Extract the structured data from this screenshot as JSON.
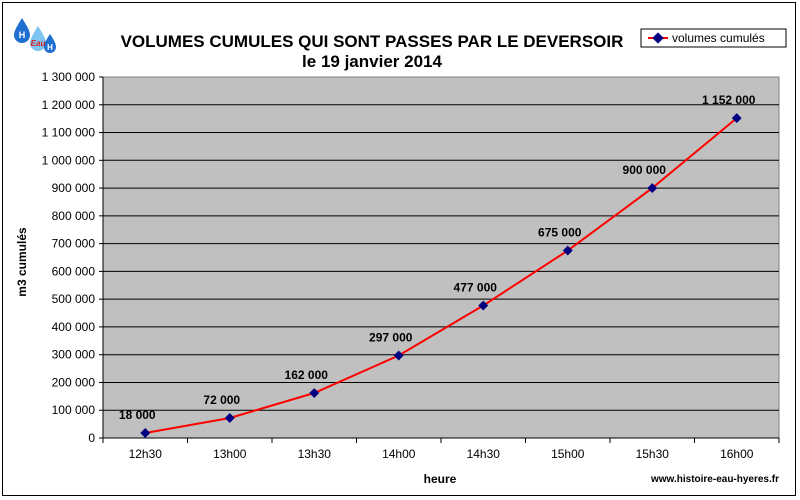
{
  "logo": {
    "letters": [
      "H",
      "Eau",
      "H"
    ],
    "colors": {
      "blue": "#1f6fd0",
      "light": "#7fc4f0",
      "red": "#d82020"
    }
  },
  "credit": "www.histoire-eau-hyeres.fr",
  "chart_data": {
    "type": "line",
    "title": "VOLUMES CUMULES QUI SONT PASSES PAR LE DEVERSOIR",
    "subtitle": "le 19 janvier 2014",
    "xlabel": "heure",
    "ylabel": "m3 cumulés",
    "categories": [
      "12h30",
      "13h00",
      "13h30",
      "14h00",
      "14h30",
      "15h00",
      "15h30",
      "16h00"
    ],
    "series": [
      {
        "name": "volumes cumulés",
        "values": [
          18000,
          72000,
          162000,
          297000,
          477000,
          675000,
          900000,
          1152000
        ],
        "data_labels": [
          "18 000",
          "72 000",
          "162 000",
          "297 000",
          "477 000",
          "675 000",
          "900 000",
          "1 152 000"
        ],
        "line_color": "#ff0000",
        "marker_color": "#000080"
      }
    ],
    "ylim": [
      0,
      1300000
    ],
    "yticks": [
      0,
      100000,
      200000,
      300000,
      400000,
      500000,
      600000,
      700000,
      800000,
      900000,
      1000000,
      1100000,
      1200000,
      1300000
    ],
    "ytick_labels": [
      "0",
      "100 000",
      "200 000",
      "300 000",
      "400 000",
      "500 000",
      "600 000",
      "700 000",
      "800 000",
      "900 000",
      "1 000 000",
      "1 100 000",
      "1 200 000",
      "1 300 000"
    ],
    "grid": true,
    "legend_position": "top-right",
    "plot_background": "#c0c0c0"
  }
}
